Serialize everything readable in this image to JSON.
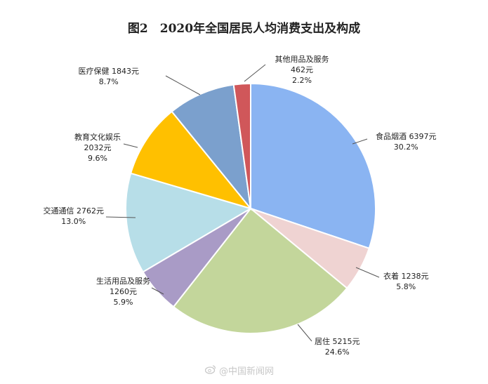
{
  "chart_data": {
    "type": "pie",
    "title": "图2　2020年全国居民人均消费支出及构成",
    "slices": [
      {
        "label": "食品烟酒",
        "value": 6397,
        "value_text": "6397元",
        "percent": "30.2%",
        "color": "#8ab4f2"
      },
      {
        "label": "衣着",
        "value": 1238,
        "value_text": "1238元",
        "percent": "5.8%",
        "color": "#efd3d2"
      },
      {
        "label": "居住",
        "value": 5215,
        "value_text": "5215元",
        "percent": "24.6%",
        "color": "#c3d69b"
      },
      {
        "label": "生活用品及服务",
        "value": 1260,
        "value_text": "1260元",
        "percent": "5.9%",
        "color": "#a99bc6"
      },
      {
        "label": "交通通信",
        "value": 2762,
        "value_text": "2762元",
        "percent": "13.0%",
        "color": "#b7dee8"
      },
      {
        "label": "教育文化娱乐",
        "value": 2032,
        "value_text": "2032元",
        "percent": "9.6%",
        "color": "#ffc000"
      },
      {
        "label": "医疗保健",
        "value": 1843,
        "value_text": "1843元",
        "percent": "8.7%",
        "color": "#7ba0cd"
      },
      {
        "label": "其他用品及服务",
        "value": 462,
        "value_text": "462元",
        "percent": "2.2%",
        "color": "#d0575a"
      }
    ]
  },
  "watermark": {
    "text": "@中国新闻网",
    "icon": "weibo-icon"
  }
}
